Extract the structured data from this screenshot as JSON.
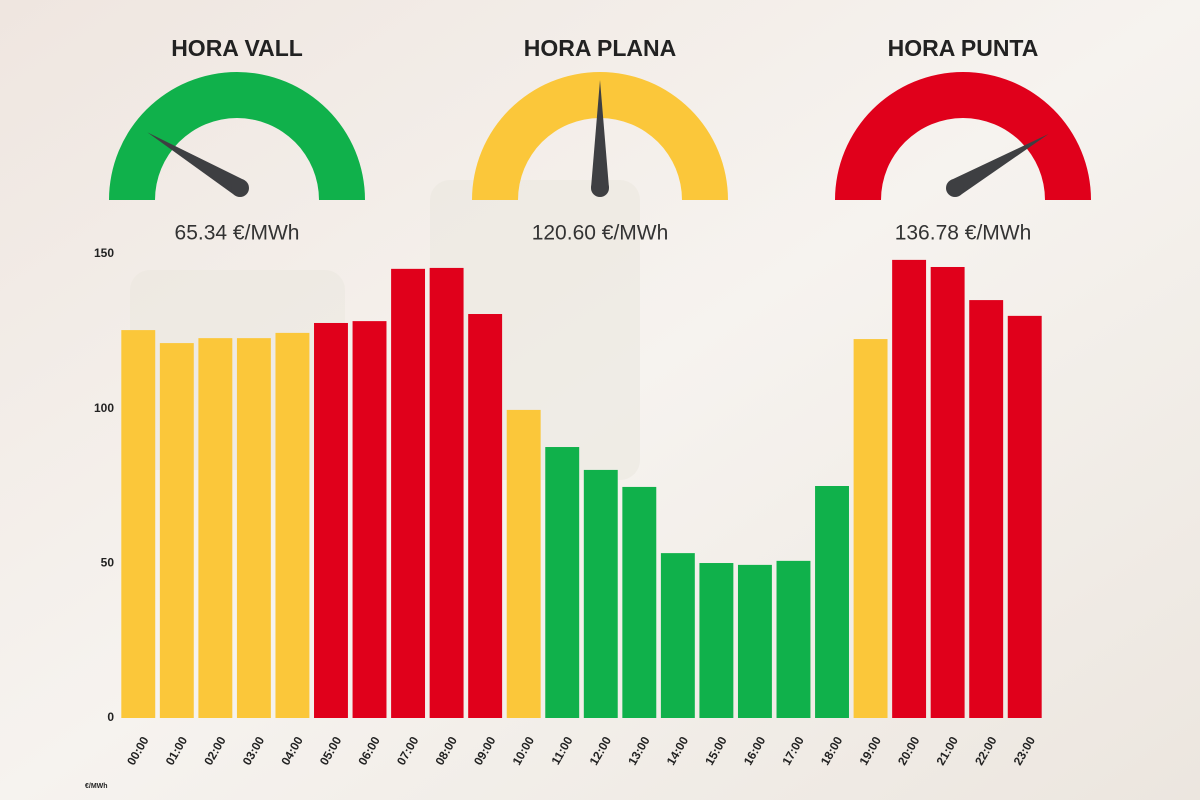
{
  "gauges": [
    {
      "title": "HORA VALL",
      "value": 65.34,
      "value_label": "65.34 €/MWh",
      "color": "#10b14b"
    },
    {
      "title": "HORA PLANA",
      "value": 120.6,
      "value_label": "120.60 €/MWh",
      "color": "#fbc73a"
    },
    {
      "title": "HORA PUNTA",
      "value": 136.78,
      "value_label": "136.78 €/MWh",
      "color": "#e0001b"
    }
  ],
  "chart_data": {
    "type": "bar",
    "y_label": "€/MWh",
    "categories": [
      "00:00",
      "01:00",
      "02:00",
      "03:00",
      "04:00",
      "05:00",
      "06:00",
      "07:00",
      "08:00",
      "09:00",
      "10:00",
      "11:00",
      "12:00",
      "13:00",
      "14:00",
      "15:00",
      "16:00",
      "17:00",
      "18:00",
      "19:00",
      "20:00",
      "21:00",
      "22:00",
      "23:00"
    ],
    "values": [
      125.4,
      121.2,
      122.8,
      122.8,
      124.5,
      127.7,
      128.3,
      145.2,
      145.5,
      130.6,
      99.6,
      87.6,
      80.2,
      74.7,
      53.3,
      50.1,
      49.5,
      50.8,
      75.0,
      122.5,
      148.1,
      145.8,
      135.1,
      130.0
    ],
    "colors": [
      "#fbc73a",
      "#fbc73a",
      "#fbc73a",
      "#fbc73a",
      "#fbc73a",
      "#e0001b",
      "#e0001b",
      "#e0001b",
      "#e0001b",
      "#e0001b",
      "#fbc73a",
      "#10b14b",
      "#10b14b",
      "#10b14b",
      "#10b14b",
      "#10b14b",
      "#10b14b",
      "#10b14b",
      "#10b14b",
      "#fbc73a",
      "#e0001b",
      "#e0001b",
      "#e0001b",
      "#e0001b"
    ],
    "ylim": [
      0,
      150
    ],
    "yticks": [
      0,
      50,
      100,
      150
    ]
  }
}
